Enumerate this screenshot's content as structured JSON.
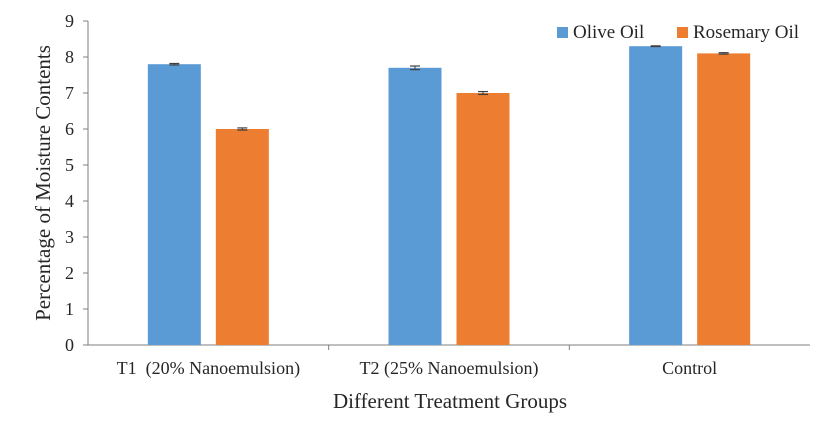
{
  "chart_data": {
    "type": "bar",
    "title": "",
    "xlabel": "Different Treatment Groups",
    "ylabel": "Percentage of Moisture Contents",
    "ylim": [
      0,
      9
    ],
    "yticks": [
      0,
      1,
      2,
      3,
      4,
      5,
      6,
      7,
      8,
      9
    ],
    "grid": false,
    "legend_position": "top-right",
    "categories": [
      "T1  (20% Nanoemulsion)",
      "T2 (25% Nanoemulsion)",
      "Control"
    ],
    "series": [
      {
        "name": "Olive Oil",
        "color": "#5B9BD5",
        "values": [
          7.8,
          7.7,
          8.3
        ],
        "errors": [
          0.02,
          0.05,
          0.01
        ]
      },
      {
        "name": "Rosemary Oil",
        "color": "#ED7D31",
        "values": [
          6.0,
          7.0,
          8.1
        ],
        "errors": [
          0.03,
          0.04,
          0.02
        ]
      }
    ]
  }
}
